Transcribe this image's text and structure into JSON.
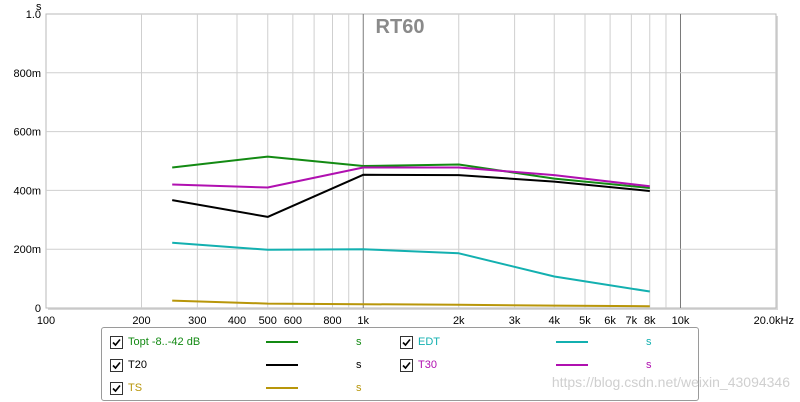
{
  "chart_data": {
    "type": "line",
    "title": "RT60",
    "ylabel": "s",
    "x_scale": "log",
    "xlim": [
      100,
      20000
    ],
    "ylim": [
      0,
      1.0
    ],
    "x_ticks": [
      {
        "v": 100,
        "label": "100"
      },
      {
        "v": 200,
        "label": "200"
      },
      {
        "v": 300,
        "label": "300"
      },
      {
        "v": 400,
        "label": "400"
      },
      {
        "v": 500,
        "label": "500"
      },
      {
        "v": 600,
        "label": "600"
      },
      {
        "v": 800,
        "label": "800"
      },
      {
        "v": 1000,
        "label": "1k"
      },
      {
        "v": 2000,
        "label": "2k"
      },
      {
        "v": 3000,
        "label": "3k"
      },
      {
        "v": 4000,
        "label": "4k"
      },
      {
        "v": 5000,
        "label": "5k"
      },
      {
        "v": 6000,
        "label": "6k"
      },
      {
        "v": 7000,
        "label": "7k"
      },
      {
        "v": 8000,
        "label": "8k"
      },
      {
        "v": 10000,
        "label": "10k"
      },
      {
        "v": 20000,
        "label": "20.0kHz"
      }
    ],
    "y_ticks": [
      {
        "v": 0,
        "label": "0"
      },
      {
        "v": 0.2,
        "label": "200m"
      },
      {
        "v": 0.4,
        "label": "400m"
      },
      {
        "v": 0.6,
        "label": "600m"
      },
      {
        "v": 0.8,
        "label": "800m"
      },
      {
        "v": 1.0,
        "label": "1.0"
      }
    ],
    "grid": true,
    "x": [
      250,
      500,
      1000,
      2000,
      4000,
      8000
    ],
    "series": [
      {
        "name": "Topt -8...-42 dB",
        "color": "#138a13",
        "values": [
          0.478,
          0.515,
          0.483,
          0.488,
          0.44,
          0.408
        ]
      },
      {
        "name": "T20",
        "color": "#000000",
        "values": [
          0.367,
          0.31,
          0.453,
          0.452,
          0.43,
          0.398
        ]
      },
      {
        "name": "TS",
        "color": "#b8960a",
        "values": [
          0.025,
          0.015,
          0.013,
          0.011,
          0.008,
          0.006
        ]
      },
      {
        "name": "EDT",
        "color": "#13b0b0",
        "values": [
          0.222,
          0.198,
          0.2,
          0.186,
          0.107,
          0.056
        ]
      },
      {
        "name": "T30",
        "color": "#b010b0",
        "values": [
          0.42,
          0.41,
          0.478,
          0.478,
          0.452,
          0.414
        ]
      }
    ]
  },
  "legend": {
    "items": [
      {
        "label": "Topt -8..-42 dB",
        "unit": "s",
        "color": "#138a13",
        "checked": true
      },
      {
        "label": "EDT",
        "unit": "s",
        "color": "#13b0b0",
        "checked": true
      },
      {
        "label": "T20",
        "unit": "s",
        "color": "#000000",
        "checked": true
      },
      {
        "label": "T30",
        "unit": "s",
        "color": "#b010b0",
        "checked": true
      },
      {
        "label": "TS",
        "unit": "s",
        "color": "#b8960a",
        "checked": true
      }
    ]
  },
  "watermark": "https://blog.csdn.net/weixin_43094346"
}
